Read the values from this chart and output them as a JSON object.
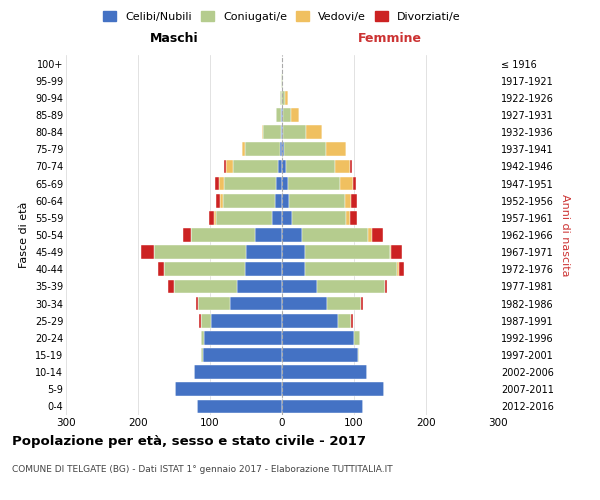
{
  "age_groups": [
    "0-4",
    "5-9",
    "10-14",
    "15-19",
    "20-24",
    "25-29",
    "30-34",
    "35-39",
    "40-44",
    "45-49",
    "50-54",
    "55-59",
    "60-64",
    "65-69",
    "70-74",
    "75-79",
    "80-84",
    "85-89",
    "90-94",
    "95-99",
    "100+"
  ],
  "birth_years": [
    "2012-2016",
    "2007-2011",
    "2002-2006",
    "1997-2001",
    "1992-1996",
    "1987-1991",
    "1982-1986",
    "1977-1981",
    "1972-1976",
    "1967-1971",
    "1962-1966",
    "1957-1961",
    "1952-1956",
    "1947-1951",
    "1942-1946",
    "1937-1941",
    "1932-1936",
    "1927-1931",
    "1922-1926",
    "1917-1921",
    "≤ 1916"
  ],
  "male": {
    "celibi": [
      118,
      148,
      122,
      110,
      108,
      98,
      72,
      62,
      52,
      50,
      38,
      14,
      10,
      8,
      6,
      3,
      2,
      1,
      0,
      0,
      0
    ],
    "coniugati": [
      0,
      0,
      0,
      2,
      5,
      15,
      45,
      88,
      112,
      128,
      88,
      78,
      72,
      72,
      62,
      48,
      24,
      8,
      3,
      1,
      0
    ],
    "vedovi": [
      0,
      0,
      0,
      0,
      0,
      0,
      0,
      0,
      0,
      0,
      1,
      2,
      4,
      8,
      10,
      5,
      2,
      0,
      0,
      0,
      0
    ],
    "divorziati": [
      0,
      0,
      0,
      0,
      0,
      2,
      2,
      8,
      8,
      18,
      10,
      8,
      5,
      5,
      2,
      0,
      0,
      0,
      0,
      0,
      0
    ]
  },
  "female": {
    "nubili": [
      112,
      142,
      118,
      105,
      100,
      78,
      62,
      48,
      32,
      32,
      28,
      14,
      10,
      8,
      5,
      3,
      2,
      1,
      0,
      0,
      0
    ],
    "coniugate": [
      0,
      0,
      0,
      2,
      8,
      18,
      48,
      95,
      128,
      118,
      92,
      75,
      78,
      72,
      68,
      58,
      32,
      12,
      4,
      1,
      0
    ],
    "vedove": [
      0,
      0,
      0,
      0,
      0,
      0,
      0,
      0,
      2,
      2,
      5,
      5,
      8,
      18,
      22,
      28,
      22,
      10,
      4,
      1,
      0
    ],
    "divorziate": [
      0,
      0,
      0,
      0,
      0,
      2,
      2,
      3,
      8,
      15,
      15,
      10,
      8,
      5,
      2,
      0,
      0,
      0,
      0,
      0,
      0
    ]
  },
  "colors": {
    "celibi": "#4472c4",
    "coniugati": "#b5cc8e",
    "vedovi": "#f0c060",
    "divorziati": "#cc2222"
  },
  "title": "Popolazione per età, sesso e stato civile - 2017",
  "subtitle": "COMUNE DI TELGATE (BG) - Dati ISTAT 1° gennaio 2017 - Elaborazione TUTTITALIA.IT",
  "xlabel_left": "Maschi",
  "xlabel_right": "Femmine",
  "ylabel_left": "Fasce di età",
  "ylabel_right": "Anni di nascita",
  "xlim": 300,
  "xticks": [
    300,
    200,
    100,
    0,
    100,
    200,
    300
  ],
  "legend_labels": [
    "Celibi/Nubili",
    "Coniugati/e",
    "Vedovi/e",
    "Divorziati/e"
  ],
  "background_color": "#ffffff",
  "grid_color": "#cccccc"
}
